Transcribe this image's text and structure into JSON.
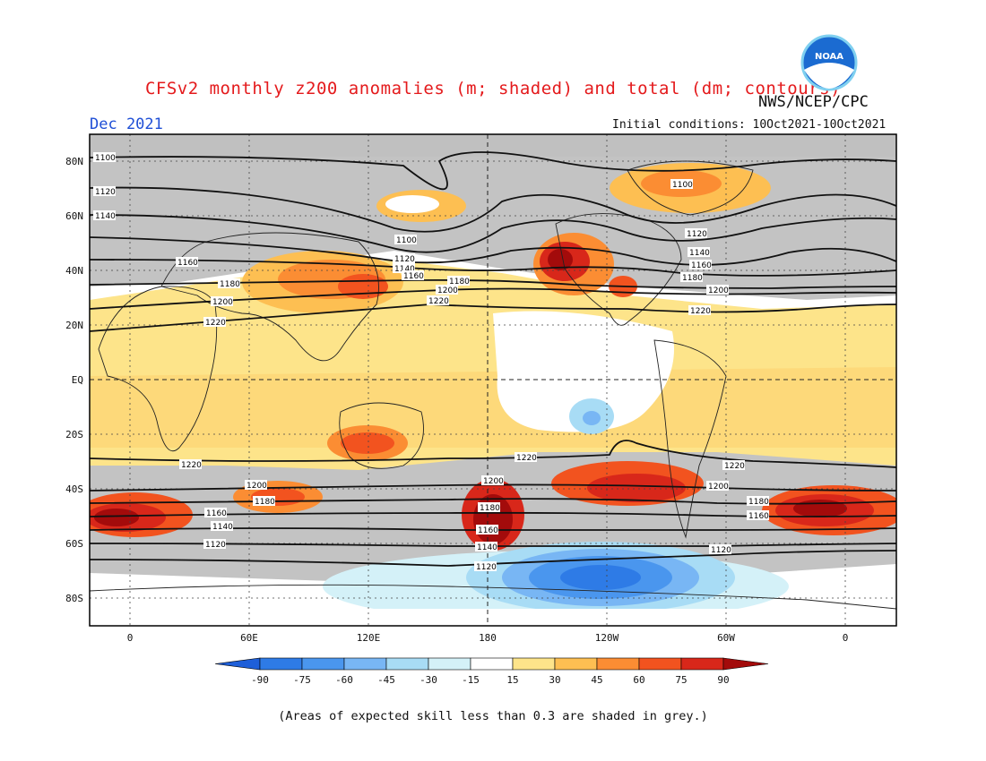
{
  "header": {
    "title": "CFSv2 monthly z200 anomalies (m; shaded) and total (dm; contours)",
    "agency": "NWS/NCEP/CPC",
    "month": "Dec 2021",
    "initial_conditions": "Initial conditions: 10Oct2021-10Oct2021",
    "logo_text": "NOAA"
  },
  "axes": {
    "lat_labels": [
      "80N",
      "60N",
      "40N",
      "20N",
      "EQ",
      "20S",
      "40S",
      "60S",
      "80S"
    ],
    "lon_labels": [
      "0",
      "60E",
      "120E",
      "180",
      "120W",
      "60W",
      "0"
    ]
  },
  "contour_labels": [
    "1100",
    "1120",
    "1140",
    "1160",
    "1180",
    "1200",
    "1220"
  ],
  "colorbar": {
    "tick_labels": [
      "-90",
      "-75",
      "-60",
      "-45",
      "-30",
      "-15",
      "15",
      "30",
      "45",
      "60",
      "75",
      "90"
    ],
    "colors": [
      "#1e5fd9",
      "#2e7be6",
      "#4a96ee",
      "#78b6f4",
      "#a8dcf5",
      "#d4f1f8",
      "#ffffff",
      "#fde48a",
      "#fdbf52",
      "#fb8d33",
      "#f2531f",
      "#d8271a",
      "#a30b0b"
    ]
  },
  "footnote": "(Areas of expected skill less than 0.3 are shaded in grey.)"
}
